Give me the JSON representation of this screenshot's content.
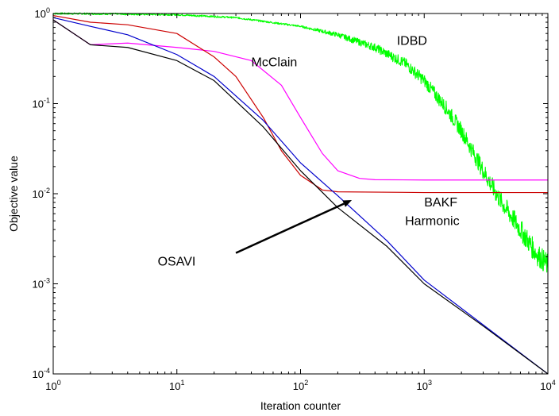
{
  "chart_data": {
    "type": "line",
    "title": "",
    "xlabel": "Iteration counter",
    "ylabel": "Objective value",
    "xscale": "log",
    "yscale": "log",
    "xlim": [
      1,
      10000
    ],
    "ylim": [
      0.0001,
      1
    ],
    "grid": false,
    "legend": "none",
    "x_ticks": [
      {
        "base": "10",
        "exp": "0",
        "value": 1
      },
      {
        "base": "10",
        "exp": "1",
        "value": 10
      },
      {
        "base": "10",
        "exp": "2",
        "value": 100
      },
      {
        "base": "10",
        "exp": "3",
        "value": 1000
      },
      {
        "base": "10",
        "exp": "4",
        "value": 10000
      }
    ],
    "y_ticks": [
      {
        "base": "10",
        "exp": "0",
        "value": 1
      },
      {
        "base": "10",
        "exp": "-1",
        "value": 0.1
      },
      {
        "base": "10",
        "exp": "-2",
        "value": 0.01
      },
      {
        "base": "10",
        "exp": "-3",
        "value": 0.001
      },
      {
        "base": "10",
        "exp": "-4",
        "value": 0.0001
      }
    ],
    "series": [
      {
        "name": "IDBD",
        "color": "#00ff00",
        "noisy": true,
        "x": [
          1,
          3,
          10,
          30,
          100,
          200,
          400,
          700,
          1000,
          1500,
          2000,
          3000,
          4000,
          6000,
          8000,
          10000
        ],
        "y": [
          1.0,
          0.99,
          0.97,
          0.9,
          0.72,
          0.58,
          0.42,
          0.28,
          0.18,
          0.09,
          0.05,
          0.018,
          0.009,
          0.004,
          0.0022,
          0.0016
        ]
      },
      {
        "name": "McClain",
        "color": "#ff00ff",
        "noisy": false,
        "x": [
          1,
          2,
          4,
          10,
          20,
          40,
          70,
          100,
          150,
          200,
          300,
          400,
          1000,
          10000
        ],
        "y": [
          0.85,
          0.45,
          0.47,
          0.42,
          0.38,
          0.3,
          0.16,
          0.07,
          0.028,
          0.018,
          0.0148,
          0.0143,
          0.0142,
          0.0142
        ]
      },
      {
        "name": "BAKF",
        "color": "#cc0000",
        "noisy": false,
        "x": [
          1,
          2,
          4,
          10,
          20,
          30,
          50,
          70,
          100,
          150,
          200,
          1000,
          10000
        ],
        "y": [
          0.95,
          0.8,
          0.75,
          0.6,
          0.33,
          0.2,
          0.07,
          0.03,
          0.016,
          0.011,
          0.0105,
          0.0103,
          0.0103
        ]
      },
      {
        "name": "Harmonic",
        "color": "#0000cc",
        "noisy": false,
        "x": [
          1,
          2,
          4,
          10,
          20,
          50,
          100,
          200,
          500,
          1000,
          3000,
          10000
        ],
        "y": [
          0.9,
          0.72,
          0.58,
          0.35,
          0.2,
          0.065,
          0.022,
          0.0095,
          0.003,
          0.0011,
          0.00035,
          0.0001
        ]
      },
      {
        "name": "OSAVI",
        "color": "#000000",
        "noisy": false,
        "x": [
          1,
          2,
          4,
          10,
          20,
          50,
          100,
          200,
          500,
          1000,
          3000,
          10000
        ],
        "y": [
          0.85,
          0.45,
          0.42,
          0.3,
          0.18,
          0.055,
          0.018,
          0.007,
          0.0026,
          0.001,
          0.00034,
          0.0001
        ]
      }
    ],
    "annotations": [
      {
        "text": "IDBD",
        "x": 600,
        "y": 0.45
      },
      {
        "text": "McClain",
        "x": 40,
        "y": 0.26
      },
      {
        "text": "BAKF",
        "x": 1000,
        "y": 0.0072
      },
      {
        "text": "Harmonic",
        "x": 700,
        "y": 0.0045
      },
      {
        "text": "OSAVI",
        "x": 7,
        "y": 0.0016
      }
    ],
    "arrow": {
      "from_x": 30,
      "from_y": 0.0022,
      "to_x": 260,
      "to_y": 0.0085
    }
  }
}
